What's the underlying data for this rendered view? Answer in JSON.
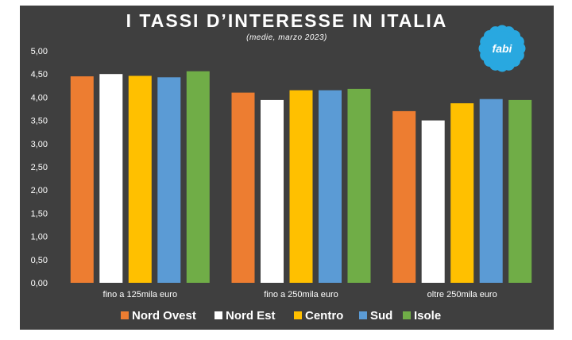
{
  "chart_data": {
    "type": "bar",
    "title": "I TASSI D’INTERESSE IN ITALIA",
    "subtitle": "(medie, marzo 2023)",
    "categories": [
      "fino a 125mila euro",
      "fino a 250mila euro",
      "oltre 250mila euro"
    ],
    "series": [
      {
        "name": "Nord Ovest",
        "color": "#ed7d31",
        "values": [
          4.45,
          4.1,
          3.7
        ]
      },
      {
        "name": "Nord Est",
        "color": "#ffffff",
        "values": [
          4.5,
          3.94,
          3.5
        ]
      },
      {
        "name": "Centro",
        "color": "#ffc000",
        "values": [
          4.46,
          4.15,
          3.87
        ]
      },
      {
        "name": "Sud",
        "color": "#5b9bd5",
        "values": [
          4.43,
          4.15,
          3.96
        ]
      },
      {
        "name": "Isole",
        "color": "#70ad47",
        "values": [
          4.56,
          4.18,
          3.94
        ]
      }
    ],
    "ylim": [
      0,
      5
    ],
    "yticks": [
      "0,00",
      "0,50",
      "1,00",
      "1,50",
      "2,00",
      "2,50",
      "3,00",
      "3,50",
      "4,00",
      "4,50",
      "5,00"
    ],
    "legend_position": "bottom",
    "grid": false
  },
  "logo": {
    "text": "fabi",
    "color": "#29a8e0"
  }
}
